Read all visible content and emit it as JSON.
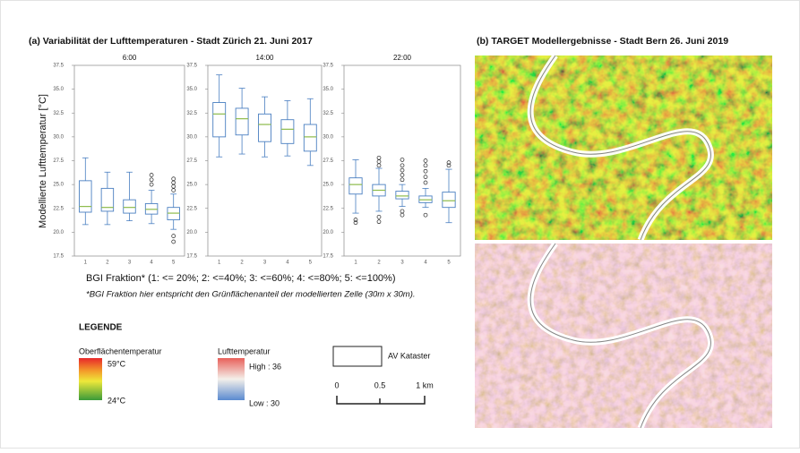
{
  "figure": {
    "title_a": "(a) Variabilität der Lufttemperaturen - Stadt Zürich 21. Juni 2017",
    "title_b": "(b) TARGET Modellergebnisse - Stadt Bern 26. Juni 2019",
    "ylabel": "Modellierte Lufttemperatur [°C]",
    "xlabel": "BGI Fraktion* (1: <= 20%; 2: <=40%; 3: <=60%; 4: <=80%; 5: <=100%)",
    "note": "*BGI Fraktion hier entspricht den Grünflächenanteil der modellierten Zelle (30m x 30m)."
  },
  "chart_data": [
    {
      "type": "box",
      "title": "6:00",
      "categories": [
        "1",
        "2",
        "3",
        "4",
        "5"
      ],
      "box_color": "#4a7fc1",
      "median_color": "#8dbb4a",
      "ylim": [
        17.5,
        37.5
      ],
      "yticks": [
        17.5,
        {
          "value": 20,
          "label": "20.0"
        },
        22.5,
        {
          "value": 25,
          "label": "25.0"
        },
        27.5,
        {
          "value": 30,
          "label": "30.0"
        },
        32.5,
        {
          "value": 35,
          "label": "35.0"
        },
        37.5
      ],
      "boxes": [
        {
          "min": 20.8,
          "q1": 22.1,
          "median": 22.7,
          "q3": 25.4,
          "max": 27.8,
          "outliers": []
        },
        {
          "min": 20.8,
          "q1": 22.2,
          "median": 22.6,
          "q3": 24.6,
          "max": 26.3,
          "outliers": []
        },
        {
          "min": 21.2,
          "q1": 22.0,
          "median": 22.6,
          "q3": 23.4,
          "max": 26.3,
          "outliers": []
        },
        {
          "min": 20.9,
          "q1": 21.9,
          "median": 22.4,
          "q3": 23.0,
          "max": 24.4,
          "outliers": [
            25.0,
            25.5,
            26.0
          ]
        },
        {
          "min": 20.3,
          "q1": 21.3,
          "median": 22.0,
          "q3": 22.6,
          "max": 24.0,
          "outliers": [
            24.4,
            24.8,
            25.2,
            25.6,
            19.6,
            19.0
          ]
        }
      ]
    },
    {
      "type": "box",
      "title": "14:00",
      "categories": [
        "1",
        "2",
        "3",
        "4",
        "5"
      ],
      "box_color": "#4a7fc1",
      "median_color": "#8dbb4a",
      "ylim": [
        17.5,
        37.5
      ],
      "yticks": [
        17.5,
        {
          "value": 20,
          "label": "20.0"
        },
        22.5,
        {
          "value": 25,
          "label": "25.0"
        },
        27.5,
        {
          "value": 30,
          "label": "30.0"
        },
        32.5,
        {
          "value": 35,
          "label": "35.0"
        },
        37.5
      ],
      "boxes": [
        {
          "min": 27.9,
          "q1": 30.0,
          "median": 32.4,
          "q3": 33.6,
          "max": 36.5,
          "outliers": []
        },
        {
          "min": 28.2,
          "q1": 30.2,
          "median": 31.9,
          "q3": 33.0,
          "max": 35.1,
          "outliers": []
        },
        {
          "min": 27.9,
          "q1": 29.5,
          "median": 31.3,
          "q3": 32.4,
          "max": 34.2,
          "outliers": []
        },
        {
          "min": 28.0,
          "q1": 29.3,
          "median": 30.8,
          "q3": 31.8,
          "max": 33.8,
          "outliers": []
        },
        {
          "min": 27.0,
          "q1": 28.5,
          "median": 30.0,
          "q3": 31.3,
          "max": 34.0,
          "outliers": []
        }
      ]
    },
    {
      "type": "box",
      "title": "22:00",
      "categories": [
        "1",
        "2",
        "3",
        "4",
        "5"
      ],
      "box_color": "#4a7fc1",
      "median_color": "#8dbb4a",
      "ylim": [
        17.5,
        37.5
      ],
      "yticks": [
        17.5,
        {
          "value": 20,
          "label": "20.0"
        },
        22.5,
        {
          "value": 25,
          "label": "25.0"
        },
        27.5,
        {
          "value": 30,
          "label": "30.0"
        },
        32.5,
        {
          "value": 35,
          "label": "35.0"
        },
        37.5
      ],
      "boxes": [
        {
          "min": 22.0,
          "q1": 24.0,
          "median": 25.0,
          "q3": 25.7,
          "max": 27.6,
          "outliers": [
            21.3,
            21.0
          ]
        },
        {
          "min": 22.2,
          "q1": 23.8,
          "median": 24.4,
          "q3": 25.0,
          "max": 26.7,
          "outliers": [
            27.0,
            27.4,
            27.8,
            21.6,
            21.1
          ]
        },
        {
          "min": 22.7,
          "q1": 23.5,
          "median": 23.8,
          "q3": 24.3,
          "max": 25.0,
          "outliers": [
            25.5,
            26.0,
            26.5,
            27.0,
            27.6,
            22.2,
            21.8
          ]
        },
        {
          "min": 22.6,
          "q1": 23.1,
          "median": 23.4,
          "q3": 23.8,
          "max": 24.6,
          "outliers": [
            25.2,
            25.8,
            26.4,
            27.0,
            27.5,
            21.8
          ]
        },
        {
          "min": 21.0,
          "q1": 22.6,
          "median": 23.3,
          "q3": 24.2,
          "max": 26.6,
          "outliers": [
            27.0,
            27.3
          ]
        }
      ]
    }
  ],
  "legend": {
    "title": "LEGENDE",
    "surface_label": "Oberflächentemperatur",
    "surface_high": "59°C",
    "surface_low": "24°C",
    "air_label": "Lufttemperatur",
    "air_high": "High : 36",
    "air_low": "Low : 30",
    "cadastre_label": "AV Kataster",
    "scale_0": "0",
    "scale_mid": "0.5",
    "scale_end": "1 km"
  }
}
